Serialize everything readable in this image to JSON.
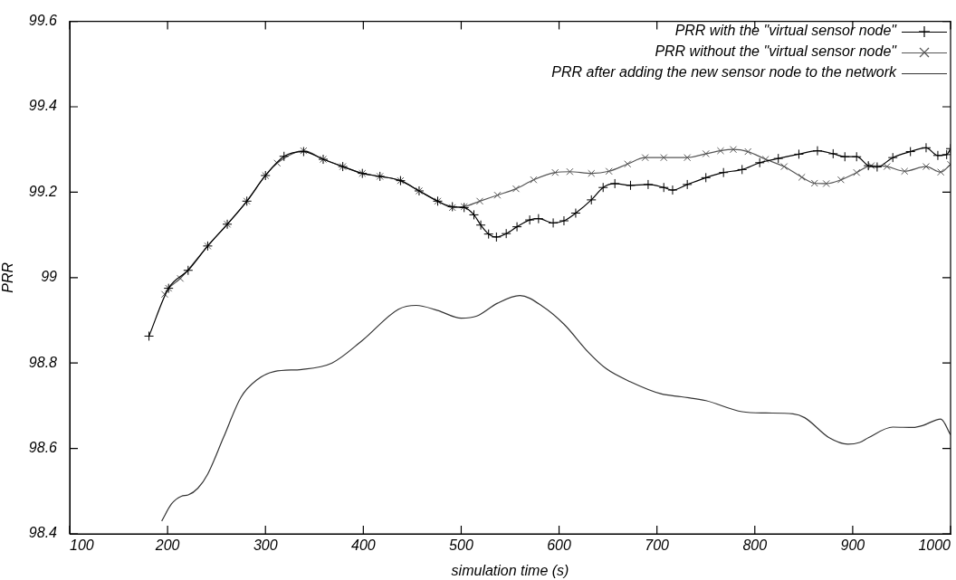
{
  "chart_data": {
    "type": "line",
    "xlabel": "simulation time (s)",
    "ylabel": "PRR",
    "xlim": [
      100,
      1000
    ],
    "xticks": [
      100,
      200,
      300,
      400,
      500,
      600,
      700,
      800,
      900,
      1000
    ],
    "ylim": [
      98.4,
      99.6
    ],
    "yticks": [
      98.4,
      98.6,
      98.8,
      99,
      99.2,
      99.4,
      99.6
    ],
    "grid": false,
    "legend": "top right",
    "line_style": "solid",
    "series": [
      {
        "name": "PRR with the \"virtual sensor node\"",
        "color": "#000000",
        "marker": "cross",
        "x": [
          181,
          201,
          221,
          241,
          261,
          281,
          300,
          319,
          339,
          359,
          379,
          399,
          417,
          438,
          457,
          476,
          491,
          503,
          513,
          520,
          528,
          536,
          546,
          557,
          570,
          579,
          594,
          605,
          617,
          633,
          645,
          657,
          673,
          691,
          707,
          716,
          731,
          750,
          768,
          787,
          805,
          824,
          845,
          864,
          880,
          892,
          904,
          916,
          925,
          941,
          959,
          975,
          987,
          996,
          1000
        ],
        "values": [
          98.863,
          98.975,
          99.017,
          99.074,
          99.125,
          99.179,
          99.239,
          99.284,
          99.295,
          99.277,
          99.26,
          99.244,
          99.237,
          99.227,
          99.203,
          99.179,
          99.166,
          99.164,
          99.147,
          99.123,
          99.102,
          99.095,
          99.103,
          99.119,
          99.135,
          99.138,
          99.128,
          99.133,
          99.151,
          99.182,
          99.211,
          99.22,
          99.216,
          99.218,
          99.211,
          99.205,
          99.218,
          99.234,
          99.246,
          99.253,
          99.269,
          99.279,
          99.289,
          99.297,
          99.29,
          99.283,
          99.283,
          99.262,
          99.259,
          99.281,
          99.295,
          99.304,
          99.286,
          99.288,
          99.302
        ]
      },
      {
        "name": "PRR without the \"virtual sensor node\"",
        "color": "#555555",
        "marker": "crossRot",
        "x": [
          197,
          201,
          213,
          241,
          261,
          281,
          300,
          312,
          339,
          359,
          379,
          399,
          417,
          438,
          457,
          476,
          491,
          503,
          519,
          537,
          556,
          574,
          596,
          611,
          633,
          651,
          670,
          688,
          707,
          731,
          750,
          765,
          778,
          793,
          811,
          830,
          848,
          861,
          873,
          888,
          904,
          919,
          935,
          953,
          975,
          990,
          1000
        ],
        "values": [
          98.961,
          98.975,
          98.998,
          99.074,
          99.125,
          99.179,
          99.239,
          99.268,
          99.297,
          99.277,
          99.26,
          99.244,
          99.237,
          99.227,
          99.203,
          99.179,
          99.164,
          99.166,
          99.179,
          99.193,
          99.208,
          99.229,
          99.246,
          99.248,
          99.244,
          99.249,
          99.266,
          99.281,
          99.281,
          99.281,
          99.29,
          99.297,
          99.3,
          99.295,
          99.277,
          99.26,
          99.235,
          99.221,
          99.22,
          99.229,
          99.246,
          99.262,
          99.26,
          99.249,
          99.26,
          99.247,
          99.265
        ]
      },
      {
        "name": "PRR after adding the new sensor node to the network",
        "color": "#333333",
        "marker": "none",
        "x": [
          194,
          204,
          214,
          221,
          231,
          241,
          257,
          275,
          291,
          309,
          337,
          368,
          399,
          436,
          454,
          476,
          500,
          516,
          537,
          560,
          583,
          605,
          630,
          648,
          673,
          704,
          725,
          750,
          787,
          811,
          839,
          851,
          876,
          895,
          907,
          916,
          941,
          962,
          972,
          990,
          1000
        ],
        "values": [
          98.43,
          98.47,
          98.488,
          98.491,
          98.507,
          98.54,
          98.625,
          98.72,
          98.76,
          98.78,
          98.785,
          98.8,
          98.853,
          98.926,
          98.935,
          98.923,
          98.905,
          98.91,
          98.94,
          98.958,
          98.933,
          98.891,
          98.825,
          98.787,
          98.756,
          98.728,
          98.721,
          98.712,
          98.686,
          98.683,
          98.681,
          98.672,
          98.625,
          98.61,
          98.614,
          98.625,
          98.65,
          98.649,
          98.654,
          98.669,
          98.632
        ]
      }
    ]
  }
}
